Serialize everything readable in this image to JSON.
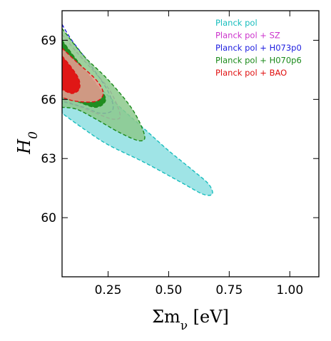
{
  "chart_data": {
    "type": "contour",
    "xlabel": "Σm_ν [eV]",
    "ylabel": "H_0",
    "xlim": [
      0.06,
      1.12
    ],
    "ylim": [
      57,
      70.5
    ],
    "xticks": [
      0.25,
      0.5,
      0.75,
      1.0
    ],
    "xtick_labels": [
      "0.25",
      "0.50",
      "0.75",
      "1.00"
    ],
    "yticks": [
      60,
      63,
      66,
      69
    ],
    "ytick_labels": [
      "60",
      "63",
      "66",
      "69"
    ],
    "legend_position": "top-right",
    "series": [
      {
        "name": "Planck pol",
        "color": "#17bdbd",
        "fill": "#8edfe2",
        "outer_contour": [
          [
            0.06,
            68.5
          ],
          [
            0.1,
            68.0
          ],
          [
            0.2,
            66.8
          ],
          [
            0.3,
            65.6
          ],
          [
            0.4,
            64.5
          ],
          [
            0.5,
            63.4
          ],
          [
            0.6,
            62.4
          ],
          [
            0.665,
            61.7
          ],
          [
            0.68,
            61.2
          ],
          [
            0.64,
            61.2
          ],
          [
            0.55,
            61.8
          ],
          [
            0.4,
            62.8
          ],
          [
            0.25,
            63.7
          ],
          [
            0.15,
            64.5
          ],
          [
            0.06,
            65.3
          ]
        ]
      },
      {
        "name": "Planck pol + SZ",
        "color": "#cc33cc",
        "outer_contour": [
          [
            0.06,
            69.3
          ],
          [
            0.12,
            68.4
          ],
          [
            0.2,
            67.3
          ],
          [
            0.26,
            66.4
          ],
          [
            0.3,
            65.2
          ],
          [
            0.27,
            65.0
          ],
          [
            0.2,
            65.3
          ],
          [
            0.12,
            65.7
          ],
          [
            0.06,
            66.0
          ]
        ]
      },
      {
        "name": "Planck pol + H073p0",
        "color": "#2020e0",
        "outer_contour": [
          [
            0.06,
            69.8
          ],
          [
            0.1,
            69.0
          ],
          [
            0.18,
            67.7
          ],
          [
            0.25,
            66.4
          ],
          [
            0.27,
            65.5
          ],
          [
            0.22,
            65.3
          ],
          [
            0.15,
            65.6
          ],
          [
            0.06,
            65.9
          ]
        ]
      },
      {
        "name": "Planck pol + H070p6",
        "color": "#1a8a1a",
        "fill": "#8cc98c",
        "outer_contour": [
          [
            0.06,
            69.6
          ],
          [
            0.15,
            68.2
          ],
          [
            0.25,
            67.0
          ],
          [
            0.35,
            65.5
          ],
          [
            0.4,
            64.2
          ],
          [
            0.38,
            63.9
          ],
          [
            0.3,
            64.3
          ],
          [
            0.2,
            65.0
          ],
          [
            0.12,
            65.5
          ],
          [
            0.06,
            65.6
          ]
        ],
        "inner_contour": [
          [
            0.06,
            69.0
          ],
          [
            0.12,
            68.0
          ],
          [
            0.2,
            66.8
          ],
          [
            0.24,
            66.0
          ],
          [
            0.2,
            65.6
          ],
          [
            0.12,
            65.9
          ],
          [
            0.06,
            66.1
          ]
        ]
      },
      {
        "name": "Planck pol + BAO",
        "color": "#e01010",
        "fill": "#ef9b94",
        "outer_contour": [
          [
            0.06,
            68.6
          ],
          [
            0.12,
            67.9
          ],
          [
            0.2,
            67.0
          ],
          [
            0.23,
            66.3
          ],
          [
            0.2,
            65.9
          ],
          [
            0.12,
            65.9
          ],
          [
            0.06,
            66.1
          ]
        ],
        "inner_contour": [
          [
            0.06,
            68.2
          ],
          [
            0.1,
            67.6
          ],
          [
            0.13,
            67.0
          ],
          [
            0.13,
            66.5
          ],
          [
            0.1,
            66.3
          ],
          [
            0.06,
            66.5
          ]
        ]
      }
    ]
  }
}
